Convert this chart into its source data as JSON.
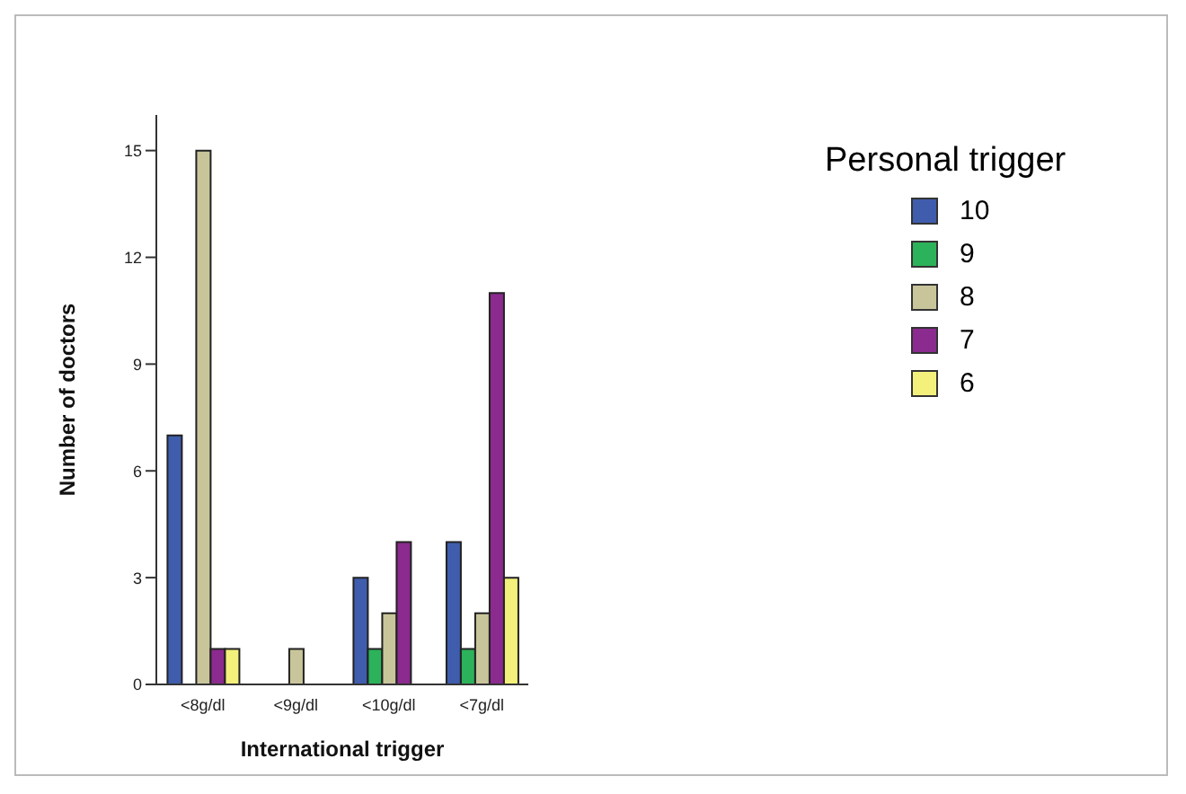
{
  "chart_data": {
    "type": "bar",
    "xlabel": "International trigger",
    "ylabel": "Number of doctors",
    "legend_title": "Personal trigger",
    "categories": [
      "<8g/dl",
      "<9g/dl",
      "<10g/dl",
      "<7g/dl"
    ],
    "series": [
      {
        "name": "10",
        "color": "#3f5dac",
        "values": [
          7,
          0,
          3,
          4
        ]
      },
      {
        "name": "9",
        "color": "#2cb25a",
        "values": [
          0,
          0,
          1,
          1
        ]
      },
      {
        "name": "8",
        "color": "#c9c59b",
        "values": [
          15,
          1,
          2,
          2
        ]
      },
      {
        "name": "7",
        "color": "#8b2a8f",
        "values": [
          1,
          0,
          4,
          11
        ]
      },
      {
        "name": "6",
        "color": "#f3f07b",
        "values": [
          1,
          0,
          0,
          3
        ]
      }
    ],
    "ylim": [
      0,
      16
    ],
    "yticks": [
      0,
      3,
      6,
      9,
      12,
      15
    ],
    "grid": false,
    "legend": "top right"
  }
}
